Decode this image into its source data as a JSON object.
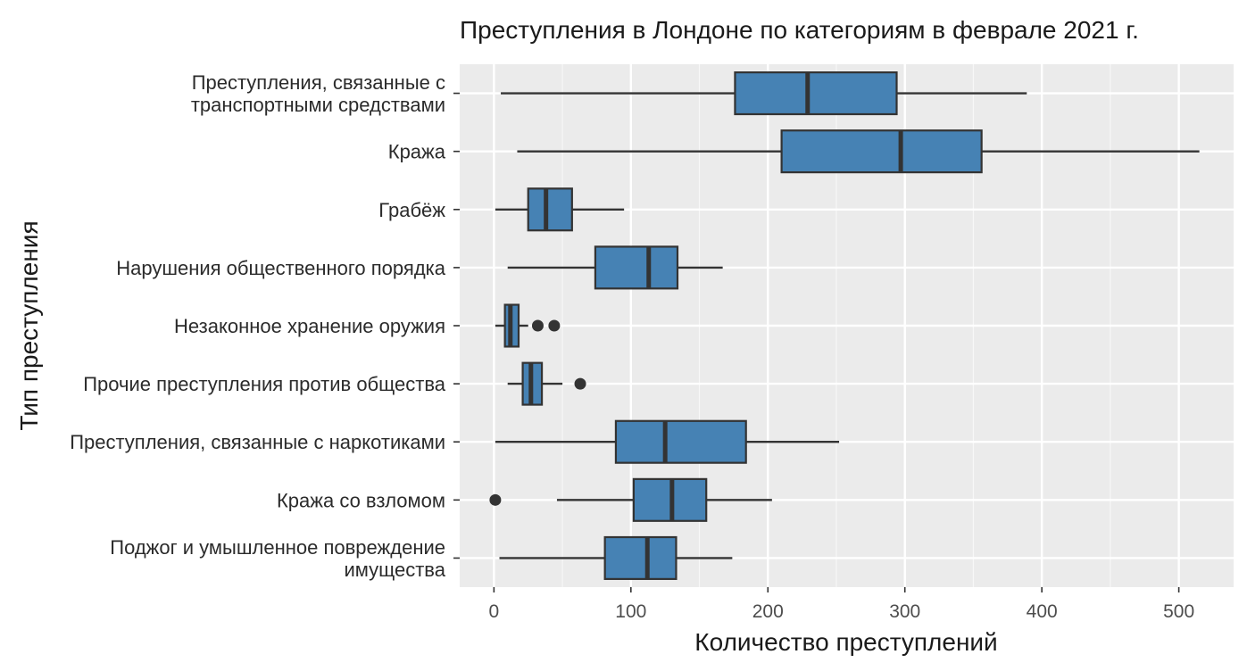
{
  "chart_data": {
    "type": "boxplot",
    "title": "Преступления в Лондоне по категориям в феврале 2021 г.",
    "xlabel": "Количество преступлений",
    "ylabel": "Тип преступления",
    "xlim": [
      -25,
      540
    ],
    "xticks": [
      0,
      100,
      200,
      300,
      400,
      500
    ],
    "grid": true,
    "box_color": "#4682b4",
    "panel_color": "#ebebeb",
    "categories": [
      {
        "label_lines": [
          "Преступления, связанные с",
          "транспортными средствами"
        ],
        "whisker_low": 5,
        "q1": 176,
        "median": 229,
        "q3": 294,
        "whisker_high": 389,
        "outliers": []
      },
      {
        "label_lines": [
          "Кража"
        ],
        "whisker_low": 17,
        "q1": 210,
        "median": 297,
        "q3": 356,
        "whisker_high": 515,
        "outliers": []
      },
      {
        "label_lines": [
          "Грабёж"
        ],
        "whisker_low": 1,
        "q1": 25,
        "median": 38,
        "q3": 57,
        "whisker_high": 95,
        "outliers": []
      },
      {
        "label_lines": [
          "Нарушения общественного порядка"
        ],
        "whisker_low": 10,
        "q1": 74,
        "median": 113,
        "q3": 134,
        "whisker_high": 167,
        "outliers": []
      },
      {
        "label_lines": [
          "Незаконное хранение оружия"
        ],
        "whisker_low": 1,
        "q1": 8,
        "median": 12,
        "q3": 18,
        "whisker_high": 25,
        "outliers": [
          32,
          44
        ]
      },
      {
        "label_lines": [
          "Прочие преступления против общества"
        ],
        "whisker_low": 10,
        "q1": 21,
        "median": 27,
        "q3": 35,
        "whisker_high": 50,
        "outliers": [
          63
        ]
      },
      {
        "label_lines": [
          "Преступления, связанные с наркотиками"
        ],
        "whisker_low": 1,
        "q1": 89,
        "median": 125,
        "q3": 184,
        "whisker_high": 252,
        "outliers": []
      },
      {
        "label_lines": [
          "Кража со взломом"
        ],
        "whisker_low": 46,
        "q1": 102,
        "median": 130,
        "q3": 155,
        "whisker_high": 203,
        "outliers": [
          1
        ]
      },
      {
        "label_lines": [
          "Поджог и умышленное повреждение",
          "имущества"
        ],
        "whisker_low": 4,
        "q1": 81,
        "median": 112,
        "q3": 133,
        "whisker_high": 174,
        "outliers": []
      }
    ]
  }
}
